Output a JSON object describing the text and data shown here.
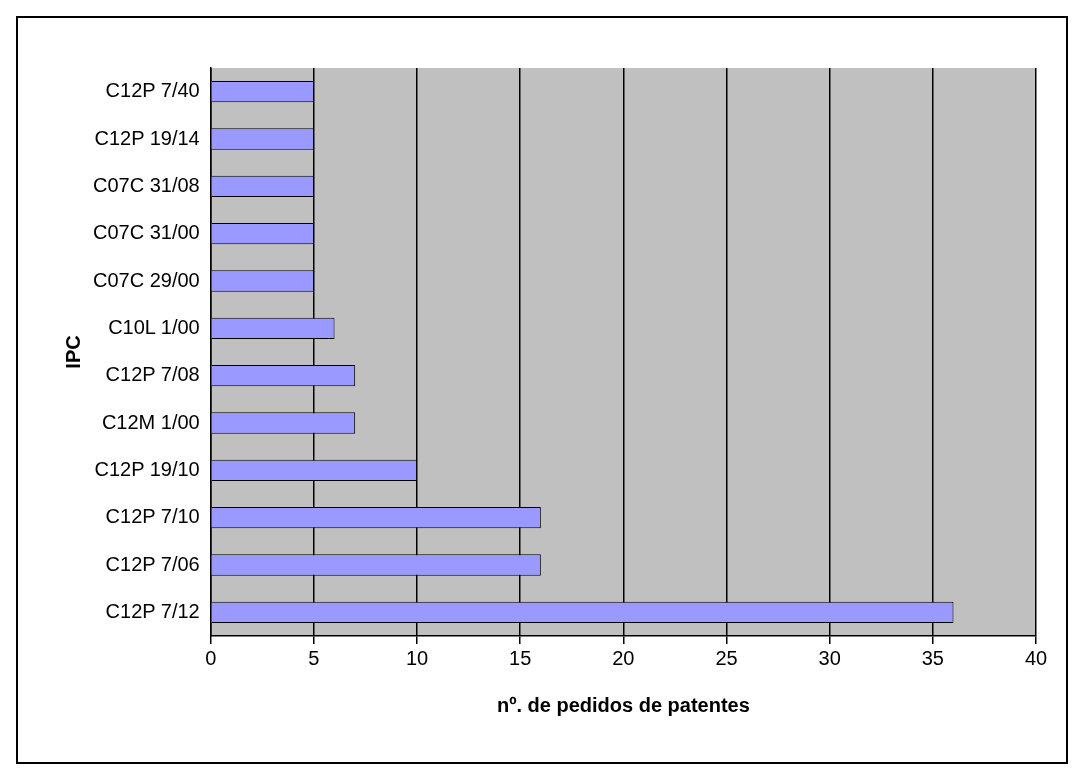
{
  "chart_data": {
    "type": "bar",
    "orientation": "horizontal",
    "xlabel": "nº. de pedidos de patentes",
    "ylabel": "IPC",
    "categories": [
      "C12P 7/40",
      "C12P 19/14",
      "C07C 31/08",
      "C07C 31/00",
      "C07C 29/00",
      "C10L 1/00",
      "C12P 7/08",
      "C12M 1/00",
      "C12P 19/10",
      "C12P 7/10",
      "C12P 7/06",
      "C12P 7/12"
    ],
    "values": [
      5,
      5,
      5,
      5,
      5,
      6,
      7,
      7,
      10,
      16,
      16,
      36
    ],
    "color": "#9999ff",
    "xlim": [
      0,
      40
    ],
    "xticks": [
      0,
      5,
      10,
      15,
      20,
      25,
      30,
      35,
      40
    ],
    "grid": "x",
    "legend": false
  }
}
